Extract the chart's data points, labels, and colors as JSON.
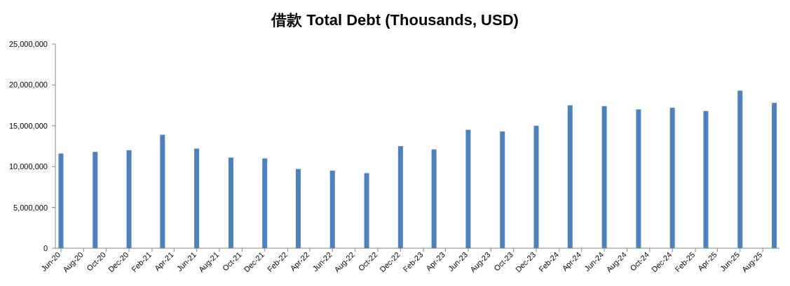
{
  "chart_data": {
    "type": "bar",
    "title": "借款 Total Debt (Thousands, USD)",
    "color": "#4f81bd",
    "x": [
      "2020-06",
      "2020-09",
      "2020-12",
      "2021-03",
      "2021-06",
      "2021-09",
      "2021-12",
      "2022-03",
      "2022-06",
      "2022-09",
      "2022-12",
      "2023-03",
      "2023-06",
      "2023-09",
      "2023-12",
      "2024-03",
      "2024-06",
      "2024-09",
      "2024-12",
      "2025-03",
      "2025-06",
      "2025-09"
    ],
    "values": [
      11600000,
      11800000,
      12000000,
      13900000,
      12200000,
      11100000,
      11000000,
      9700000,
      9500000,
      9200000,
      12500000,
      12100000,
      14500000,
      14300000,
      15000000,
      17500000,
      17400000,
      17000000,
      17200000,
      16800000,
      19300000,
      17800000
    ],
    "xlim": [
      "2020-05-17",
      "2025-09-15"
    ],
    "xticks": [
      {
        "value": "2020-06",
        "label": "Jun-20"
      },
      {
        "value": "2020-08",
        "label": "Aug-20"
      },
      {
        "value": "2020-10",
        "label": "Oct-20"
      },
      {
        "value": "2020-12",
        "label": "Dec-20"
      },
      {
        "value": "2021-02",
        "label": "Feb-21"
      },
      {
        "value": "2021-04",
        "label": "Apr-21"
      },
      {
        "value": "2021-06",
        "label": "Jun-21"
      },
      {
        "value": "2021-08",
        "label": "Aug-21"
      },
      {
        "value": "2021-10",
        "label": "Oct-21"
      },
      {
        "value": "2021-12",
        "label": "Dec-21"
      },
      {
        "value": "2022-02",
        "label": "Feb-22"
      },
      {
        "value": "2022-04",
        "label": "Apr-22"
      },
      {
        "value": "2022-06",
        "label": "Jun-22"
      },
      {
        "value": "2022-08",
        "label": "Aug-22"
      },
      {
        "value": "2022-10",
        "label": "Oct-22"
      },
      {
        "value": "2022-12",
        "label": "Dec-22"
      },
      {
        "value": "2023-02",
        "label": "Feb-23"
      },
      {
        "value": "2023-04",
        "label": "Apr-23"
      },
      {
        "value": "2023-06",
        "label": "Jun-23"
      },
      {
        "value": "2023-08",
        "label": "Aug-23"
      },
      {
        "value": "2023-10",
        "label": "Oct-23"
      },
      {
        "value": "2023-12",
        "label": "Dec-23"
      },
      {
        "value": "2024-02",
        "label": "Feb-24"
      },
      {
        "value": "2024-04",
        "label": "Apr-24"
      },
      {
        "value": "2024-06",
        "label": "Jun-24"
      },
      {
        "value": "2024-08",
        "label": "Aug-24"
      },
      {
        "value": "2024-10",
        "label": "Oct-24"
      },
      {
        "value": "2024-12",
        "label": "Dec-24"
      },
      {
        "value": "2025-02",
        "label": "Feb-25"
      },
      {
        "value": "2025-04",
        "label": "Apr-25"
      },
      {
        "value": "2025-06",
        "label": "Jun-25"
      },
      {
        "value": "2025-08",
        "label": "Aug-25"
      }
    ],
    "ylim": [
      0,
      25000000
    ],
    "yticks": [
      {
        "value": 0,
        "label": "0"
      },
      {
        "value": 5000000,
        "label": "5,000,000"
      },
      {
        "value": 10000000,
        "label": "10,000,000"
      },
      {
        "value": 15000000,
        "label": "15,000,000"
      },
      {
        "value": 20000000,
        "label": "20,000,000"
      },
      {
        "value": 25000000,
        "label": "25,000,000"
      }
    ]
  }
}
